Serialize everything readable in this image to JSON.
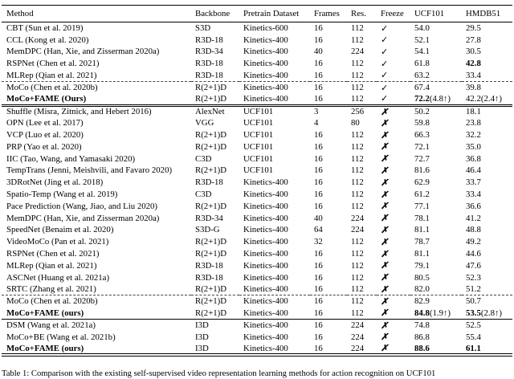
{
  "caption": "Table 1: Comparison with the existing self-supervised video representation learning methods for action recognition on UCF101",
  "icons": {
    "check": "✓",
    "cross": "✗"
  },
  "table": {
    "columns": [
      "Method",
      "Backbone",
      "Pretrain Dataset",
      "Frames",
      "Res.",
      "Freeze",
      "UCF101",
      "HMDB51"
    ],
    "rows": [
      {
        "method": "CBT (Sun et al. 2019)",
        "backbone": "S3D",
        "dataset": "Kinetics-600",
        "frames": "16",
        "res": "112",
        "freeze": "check",
        "ucf101": {
          "value": "54.0"
        },
        "hmdb51": {
          "value": "29.5"
        }
      },
      {
        "method": "CCL (Kong et al. 2020)",
        "backbone": "R3D-18",
        "dataset": "Kinetics-400",
        "frames": "16",
        "res": "112",
        "freeze": "check",
        "ucf101": {
          "value": "52.1"
        },
        "hmdb51": {
          "value": "27.8"
        }
      },
      {
        "method": "MemDPC (Han, Xie, and Zisserman 2020a)",
        "backbone": "R3D-34",
        "dataset": "Kinetics-400",
        "frames": "40",
        "res": "224",
        "freeze": "check",
        "ucf101": {
          "value": "54.1"
        },
        "hmdb51": {
          "value": "30.5"
        }
      },
      {
        "method": "RSPNet (Chen et al. 2021)",
        "backbone": "R3D-18",
        "dataset": "Kinetics-400",
        "frames": "16",
        "res": "112",
        "freeze": "check",
        "ucf101": {
          "value": "61.8"
        },
        "hmdb51": {
          "value": "42.8",
          "bold": true
        }
      },
      {
        "method": "MLRep (Qian et al. 2021)",
        "backbone": "R3D-18",
        "dataset": "Kinetics-400",
        "frames": "16",
        "res": "112",
        "freeze": "check",
        "ucf101": {
          "value": "63.2"
        },
        "hmdb51": {
          "value": "33.4"
        },
        "sep": "dashed"
      },
      {
        "method": "MoCo (Chen et al. 2020b)",
        "backbone": "R(2+1)D",
        "dataset": "Kinetics-400",
        "frames": "16",
        "res": "112",
        "freeze": "check",
        "ucf101": {
          "value": "67.4"
        },
        "hmdb51": {
          "value": "39.8"
        }
      },
      {
        "method": "MoCo+FAME (Ours)",
        "bold_method": true,
        "backbone": "R(2+1)D",
        "dataset": "Kinetics-400",
        "frames": "16",
        "res": "112",
        "freeze": "check",
        "ucf101": {
          "value": "72.2",
          "bold": true,
          "note": "(4.8↑)"
        },
        "hmdb51": {
          "value": "42.2",
          "note": "(2.4↑)"
        },
        "sep": "double"
      },
      {
        "method": "Shuffle (Misra, Zitnick, and Hebert 2016)",
        "backbone": "AlexNet",
        "dataset": "UCF101",
        "frames": "3",
        "res": "256",
        "freeze": "cross",
        "ucf101": {
          "value": "50.2"
        },
        "hmdb51": {
          "value": "18.1"
        }
      },
      {
        "method": "OPN (Lee et al. 2017)",
        "backbone": "VGG",
        "dataset": "UCF101",
        "frames": "4",
        "res": "80",
        "freeze": "cross",
        "ucf101": {
          "value": "59.8"
        },
        "hmdb51": {
          "value": "23.8"
        }
      },
      {
        "method": "VCP (Luo et al. 2020)",
        "backbone": "R(2+1)D",
        "dataset": "UCF101",
        "frames": "16",
        "res": "112",
        "freeze": "cross",
        "ucf101": {
          "value": "66.3"
        },
        "hmdb51": {
          "value": "32.2"
        }
      },
      {
        "method": "PRP (Yao et al. 2020)",
        "backbone": "R(2+1)D",
        "dataset": "UCF101",
        "frames": "16",
        "res": "112",
        "freeze": "cross",
        "ucf101": {
          "value": "72.1"
        },
        "hmdb51": {
          "value": "35.0"
        }
      },
      {
        "method": "IIC (Tao, Wang, and Yamasaki 2020)",
        "backbone": "C3D",
        "dataset": "UCF101",
        "frames": "16",
        "res": "112",
        "freeze": "cross",
        "ucf101": {
          "value": "72.7"
        },
        "hmdb51": {
          "value": "36.8"
        }
      },
      {
        "method": "TempTrans (Jenni, Meishvili, and Favaro 2020)",
        "backbone": "R(2+1)D",
        "dataset": "UCF101",
        "frames": "16",
        "res": "112",
        "freeze": "cross",
        "ucf101": {
          "value": "81.6"
        },
        "hmdb51": {
          "value": "46.4"
        }
      },
      {
        "method": "3DRotNet (Jing et al. 2018)",
        "backbone": "R3D-18",
        "dataset": "Kinetics-400",
        "frames": "16",
        "res": "112",
        "freeze": "cross",
        "ucf101": {
          "value": "62.9"
        },
        "hmdb51": {
          "value": "33.7"
        }
      },
      {
        "method": "Spatio-Temp (Wang et al. 2019)",
        "backbone": "C3D",
        "dataset": "Kinetics-400",
        "frames": "16",
        "res": "112",
        "freeze": "cross",
        "ucf101": {
          "value": "61.2"
        },
        "hmdb51": {
          "value": "33.4"
        }
      },
      {
        "method": "Pace Prediction (Wang, Jiao, and Liu 2020)",
        "backbone": "R(2+1)D",
        "dataset": "Kinetics-400",
        "frames": "16",
        "res": "112",
        "freeze": "cross",
        "ucf101": {
          "value": "77.1"
        },
        "hmdb51": {
          "value": "36.6"
        }
      },
      {
        "method": "MemDPC (Han, Xie, and Zisserman 2020a)",
        "backbone": "R3D-34",
        "dataset": "Kinetics-400",
        "frames": "40",
        "res": "224",
        "freeze": "cross",
        "ucf101": {
          "value": "78.1"
        },
        "hmdb51": {
          "value": "41.2"
        }
      },
      {
        "method": "SpeedNet (Benaim et al. 2020)",
        "backbone": "S3D-G",
        "dataset": "Kinetics-400",
        "frames": "64",
        "res": "224",
        "freeze": "cross",
        "ucf101": {
          "value": "81.1"
        },
        "hmdb51": {
          "value": "48.8"
        }
      },
      {
        "method": "VideoMoCo (Pan et al. 2021)",
        "backbone": "R(2+1)D",
        "dataset": "Kinetics-400",
        "frames": "32",
        "res": "112",
        "freeze": "cross",
        "ucf101": {
          "value": "78.7"
        },
        "hmdb51": {
          "value": "49.2"
        }
      },
      {
        "method": "RSPNet (Chen et al. 2021)",
        "backbone": "R(2+1)D",
        "dataset": "Kinetics-400",
        "frames": "16",
        "res": "112",
        "freeze": "cross",
        "ucf101": {
          "value": "81.1"
        },
        "hmdb51": {
          "value": "44.6"
        }
      },
      {
        "method": "MLRep (Qian et al. 2021)",
        "backbone": "R3D-18",
        "dataset": "Kinetics-400",
        "frames": "16",
        "res": "112",
        "freeze": "cross",
        "ucf101": {
          "value": "79.1"
        },
        "hmdb51": {
          "value": "47.6"
        }
      },
      {
        "method": "ASCNet (Huang et al. 2021a)",
        "backbone": "R3D-18",
        "dataset": "Kinetics-400",
        "frames": "16",
        "res": "112",
        "freeze": "cross",
        "ucf101": {
          "value": "80.5"
        },
        "hmdb51": {
          "value": "52.3"
        }
      },
      {
        "method": "SRTC (Zhang et al. 2021)",
        "backbone": "R(2+1)D",
        "dataset": "Kinetics-400",
        "frames": "16",
        "res": "112",
        "freeze": "cross",
        "ucf101": {
          "value": "82.0"
        },
        "hmdb51": {
          "value": "51.2"
        },
        "sep": "dashed"
      },
      {
        "method": "MoCo (Chen et al. 2020b)",
        "backbone": "R(2+1)D",
        "dataset": "Kinetics-400",
        "frames": "16",
        "res": "112",
        "freeze": "cross",
        "ucf101": {
          "value": "82.9"
        },
        "hmdb51": {
          "value": "50.7"
        }
      },
      {
        "method": "MoCo+FAME (ours)",
        "bold_method": true,
        "backbone": "R(2+1)D",
        "dataset": "Kinetics-400",
        "frames": "16",
        "res": "112",
        "freeze": "cross",
        "ucf101": {
          "value": "84.8",
          "bold": true,
          "note": "(1.9↑)"
        },
        "hmdb51": {
          "value": "53.5",
          "bold": true,
          "note": "(2.8↑)"
        },
        "sep": "single"
      },
      {
        "method": "DSM (Wang et al. 2021a)",
        "backbone": "I3D",
        "dataset": "Kinetics-400",
        "frames": "16",
        "res": "224",
        "freeze": "cross",
        "ucf101": {
          "value": "74.8"
        },
        "hmdb51": {
          "value": "52.5"
        }
      },
      {
        "method": "MoCo+BE (Wang et al. 2021b)",
        "backbone": "I3D",
        "dataset": "Kinetics-400",
        "frames": "16",
        "res": "224",
        "freeze": "cross",
        "ucf101": {
          "value": "86.8"
        },
        "hmdb51": {
          "value": "55.4"
        }
      },
      {
        "method": "MoCo+FAME (ours)",
        "bold_method": true,
        "backbone": "I3D",
        "dataset": "Kinetics-400",
        "frames": "16",
        "res": "224",
        "freeze": "cross",
        "ucf101": {
          "value": "88.6",
          "bold": true
        },
        "hmdb51": {
          "value": "61.1",
          "bold": true
        },
        "sep": "bottom"
      }
    ]
  }
}
